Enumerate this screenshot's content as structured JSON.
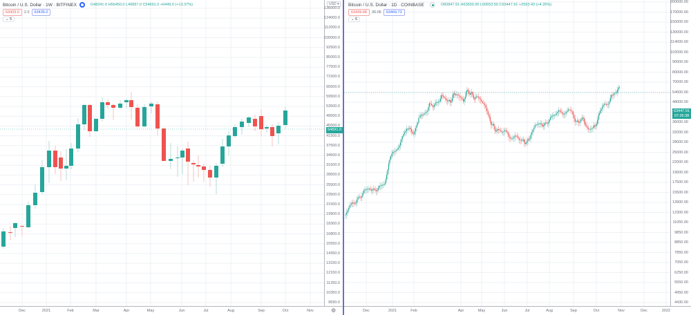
{
  "colors": {
    "up": "#26a69a",
    "down": "#ef5350",
    "grid": "#eef1f6",
    "divider": "#6b6fc4",
    "bitfinex_badge": "#2962ff",
    "coinbase_badge": "#26a69a"
  },
  "left": {
    "legend": {
      "title": "Bitcoin / U.S. Dollar · 1W · BITFINEX",
      "ohlc": "O48241.0 H56450.0 L46897.0 C54691.0 +6449.0 (+13.37%)",
      "badge_icon": "exchange-logo-icon"
    },
    "bid": {
      "sell": "63433.0",
      "spread": "2.0",
      "buy": "63435.0"
    },
    "collapse": "⌄ 5",
    "currency": "USD ▾",
    "last_price": "54691.0",
    "price_ticks": [
      "136000.0",
      "124000.0",
      "112000.0",
      "100000.0",
      "92500.0",
      "85000.0",
      "77500.0",
      "71500.0",
      "65500.0",
      "59500.0",
      "53500.0",
      "49500.0",
      "45500.0",
      "41500.0",
      "37500.0",
      "34500.0",
      "31500.0",
      "28500.0",
      "25500.0",
      "23500.0",
      "21500.0",
      "19900.0",
      "18300.0",
      "16800.0",
      "15550.0",
      "14350.0",
      "13150.0",
      "12150.0",
      "11250.0",
      "10350.0",
      "9590.0"
    ],
    "time_labels": [
      "Dec",
      "2021",
      "Feb",
      "Mar",
      "Apr",
      "May",
      "Jun",
      "Jul",
      "Aug",
      "Sep",
      "Oct",
      "Nov"
    ],
    "settings_icon": "gear-icon"
  },
  "right": {
    "legend": {
      "title": "Bitcoin / U.S. Dollar · 1D · COINBASE",
      "ohlc": "O60847.91 H63650.00 L60653.50 C63447.91 +2593.43 (+4.26%)",
      "badge_icon": "market-open-icon"
    },
    "bid": {
      "sell": "63439.68",
      "spread": "30.05",
      "buy": "63469.73"
    },
    "collapse": "⌄ 6",
    "last_price": "63447.91",
    "countdown": "07:26:38",
    "price_ticks": [
      "200000.00",
      "170000.00",
      "150000.00",
      "130000.00",
      "114000.00",
      "102000.00",
      "90000.00",
      "80000.00",
      "70000.00",
      "54000.00",
      "48000.00",
      "42000.00",
      "36000.00",
      "32000.00",
      "28000.00",
      "25000.00",
      "22000.00",
      "19500.00",
      "17500.00",
      "15500.00",
      "13900.00",
      "12300.00",
      "11050.00",
      "9850.00",
      "8850.00",
      "7850.00",
      "7050.00",
      "6250.00",
      "5550.00",
      "4950.00",
      "4430.00"
    ],
    "time_labels": [
      "Dec",
      "2021",
      "Feb",
      "Apr",
      "May",
      "Jun",
      "Jul",
      "Aug",
      "Sep",
      "Oct",
      "Nov",
      "Dec",
      "2022"
    ]
  }
}
